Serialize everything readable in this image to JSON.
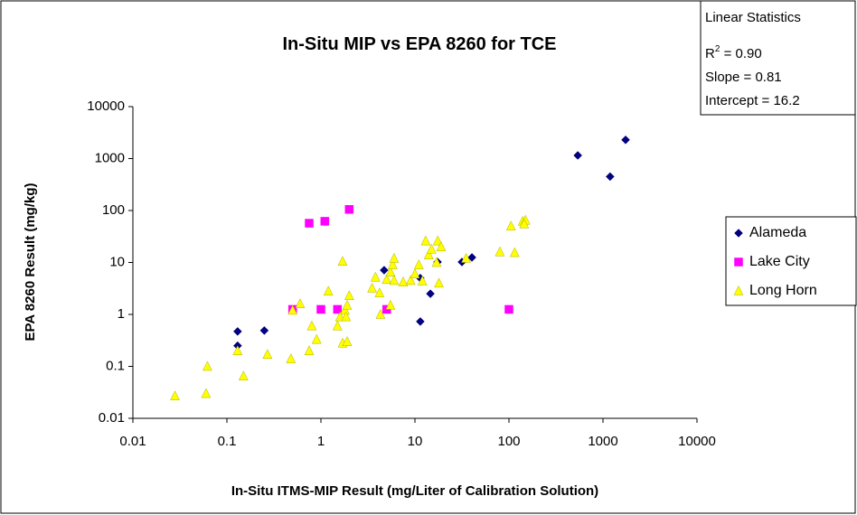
{
  "chart_data": {
    "type": "scatter",
    "title": "In-Situ MIP vs EPA 8260 for TCE",
    "x_label": "In-Situ ITMS-MIP Result (mg/Liter of Calibration Solution)",
    "y_label": "EPA 8260 Result (mg/kg)",
    "x_scale": "log",
    "y_scale": "log",
    "xlim": [
      0.01,
      10000
    ],
    "ylim": [
      0.01,
      10000
    ],
    "xticks": [
      0.01,
      0.1,
      1,
      10,
      100,
      1000,
      10000
    ],
    "yticks": [
      0.01,
      0.1,
      1,
      10,
      100,
      1000,
      10000
    ],
    "grid": false,
    "legend": "right",
    "stats": {
      "heading": "Linear Statistics",
      "r2_symbol": "R",
      "r2_exponent": "2",
      "r2_text": " = 0.90",
      "slope": "Slope = 0.81",
      "intercept": "Intercept = 16.2"
    },
    "series": [
      {
        "name": "Alameda",
        "color": "#000080",
        "marker": "diamond",
        "x": [
          0.13,
          0.13,
          0.25,
          4.7,
          11.4,
          11.4,
          14.6,
          17.4,
          31.6,
          40.4,
          540,
          1190,
          1740
        ],
        "values": [
          0.47,
          0.25,
          0.49,
          7.1,
          5.0,
          0.73,
          2.5,
          10.2,
          10.2,
          12.5,
          1150,
          450,
          2290
        ]
      },
      {
        "name": "Lake City",
        "color": "#ff00ff",
        "marker": "square",
        "x": [
          0.75,
          1.1,
          2.0,
          0.5,
          1.0,
          1.5,
          5.0,
          100
        ],
        "values": [
          57,
          62,
          105,
          1.25,
          1.25,
          1.25,
          1.25,
          1.25
        ]
      },
      {
        "name": "Long Horn",
        "color": "#ffff00",
        "marker": "triangle",
        "x": [
          0.028,
          0.06,
          0.062,
          0.13,
          0.15,
          0.27,
          0.48,
          0.5,
          0.6,
          0.75,
          0.8,
          0.9,
          1.2,
          1.5,
          1.6,
          1.7,
          1.7,
          1.8,
          1.9,
          1.9,
          2.0,
          1.85,
          3.5,
          3.8,
          4.2,
          4.3,
          5.0,
          5.5,
          5.5,
          5.8,
          6.0,
          6.0,
          7.5,
          9.0,
          10,
          11,
          12,
          13,
          14,
          15,
          17,
          17.5,
          18,
          19,
          35,
          80,
          105,
          115,
          140,
          150,
          145
        ],
        "values": [
          0.027,
          0.03,
          0.1,
          0.2,
          0.065,
          0.17,
          0.14,
          1.2,
          1.6,
          0.2,
          0.6,
          0.33,
          2.8,
          0.6,
          0.9,
          0.28,
          10.5,
          1.2,
          0.3,
          1.5,
          2.3,
          0.9,
          3.2,
          5.2,
          2.6,
          1.0,
          4.7,
          1.5,
          6.5,
          9.0,
          12,
          4.5,
          4.2,
          4.5,
          6.0,
          9.0,
          4.4,
          26,
          14,
          18,
          10,
          26,
          4.0,
          20,
          12,
          16,
          50,
          15.5,
          62,
          65,
          55
        ]
      }
    ]
  }
}
